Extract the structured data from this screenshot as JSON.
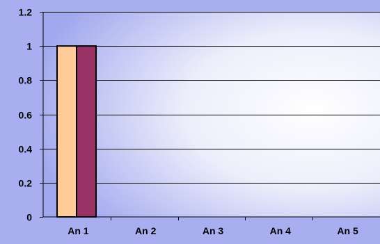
{
  "chart_data": {
    "type": "bar",
    "title": "",
    "xlabel": "",
    "ylabel": "",
    "categories": [
      "An 1",
      "An 2",
      "An 3",
      "An 4",
      "An 5"
    ],
    "series": [
      {
        "values": [
          1,
          0,
          0,
          0,
          0
        ],
        "color": "#ffcc99"
      },
      {
        "values": [
          1,
          0,
          0,
          0,
          0
        ],
        "color": "#993366"
      }
    ],
    "ylim": [
      0,
      1.2
    ],
    "yticks": [
      {
        "value": 0,
        "label": "0"
      },
      {
        "value": 0.2,
        "label": "0.2"
      },
      {
        "value": 0.4,
        "label": "0.4"
      },
      {
        "value": 0.6,
        "label": "0.6"
      },
      {
        "value": 0.8,
        "label": "0.8"
      },
      {
        "value": 1,
        "label": "1"
      },
      {
        "value": 1.2,
        "label": "1.2"
      }
    ],
    "grid": true,
    "legend": "none",
    "colors": {
      "background": "#a9aef0",
      "plot_gradient_edge": "#9ea4ee",
      "plot_gradient_center": "#ffffff"
    }
  }
}
